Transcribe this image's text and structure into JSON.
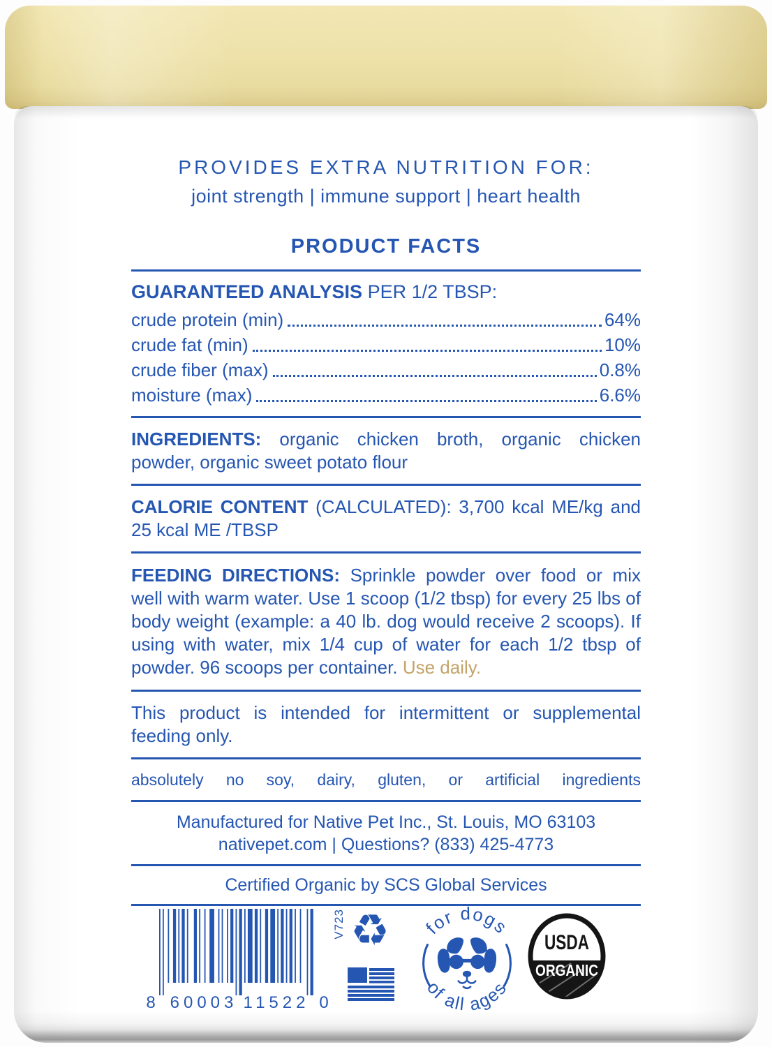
{
  "header": {
    "line1": "PROVIDES EXTRA NUTRITION FOR:",
    "tagline": "joint strength | immune support | heart health",
    "panel_title": "PRODUCT FACTS"
  },
  "analysis": {
    "heading_bold": "GUARANTEED ANALYSIS",
    "heading_rest": "PER 1/2 TBSP:",
    "rows": [
      {
        "label": "crude protein (min)",
        "value": "64%"
      },
      {
        "label": "crude fat (min)",
        "value": "10%"
      },
      {
        "label": "crude fiber (max)",
        "value": "0.8%"
      },
      {
        "label": "moisture (max)",
        "value": "6.6%"
      }
    ]
  },
  "ingredients": {
    "label": "INGREDIENTS:",
    "text": "organic chicken broth, organic chicken powder, organic sweet potato flour"
  },
  "calories": {
    "label": "CALORIE CONTENT",
    "text": "(CALCULATED): 3,700 kcal ME/kg and 25 kcal ME /TBSP"
  },
  "feeding": {
    "label": "FEEDING DIRECTIONS:",
    "text": "Sprinkle powder over food or mix well with warm water. Use 1 scoop (1/2 tbsp) for every 25 lbs of body weight (example: a 40 lb. dog would receive 2 scoops). If using with water, mix 1/4 cup of water for each 1/2 tbsp of powder. 96 scoops per container.",
    "highlight": "Use daily."
  },
  "notices": {
    "intermittent": "This product is intended for intermittent or supplemental feeding only.",
    "no_artificial": "absolutely no soy, dairy, gluten, or artificial ingredients"
  },
  "manufacturer": {
    "line1": "Manufactured for Native Pet Inc., St. Louis, MO 63103",
    "line2": "nativepet.com | Questions? (833) 425-4773",
    "certification": "Certified Organic by SCS Global Services"
  },
  "barcode": {
    "digit_left": "8",
    "digits_group1": "60003",
    "digits_group2": "11522",
    "digit_right": "0",
    "version_code": "V723"
  },
  "badges": {
    "recycle_glyph": "♻",
    "dog_top": "for dogs",
    "dog_bottom": "of all ages",
    "usda_top": "USDA",
    "usda_bottom": "ORGANIC"
  },
  "colors": {
    "blue": "#2556b2",
    "gold": "#c3a469",
    "lid_cream": "#ece0a6",
    "seal_black": "#151515"
  }
}
